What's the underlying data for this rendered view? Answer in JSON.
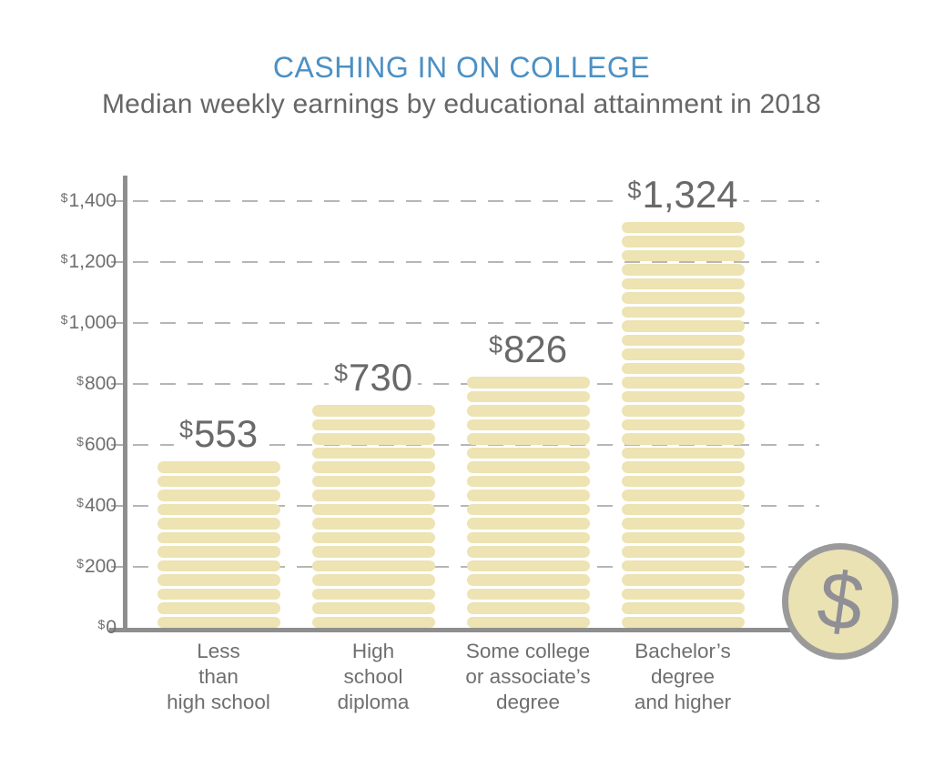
{
  "header": {
    "title": "CASHING IN ON COLLEGE",
    "subtitle": "Median weekly earnings by educational attainment in 2018"
  },
  "chart_data": {
    "type": "bar",
    "title": "CASHING IN ON COLLEGE",
    "subtitle": "Median weekly earnings by educational attainment in 2018",
    "currency_symbol": "$",
    "categories": [
      [
        "Less",
        "than",
        "high school"
      ],
      [
        "High",
        "school",
        "diploma"
      ],
      [
        "Some college",
        "or associate’s",
        "degree"
      ],
      [
        "Bachelor’s",
        "degree",
        "and higher"
      ]
    ],
    "values": [
      553,
      730,
      826,
      1324
    ],
    "value_labels": [
      "553",
      "730",
      "826",
      "1,324"
    ],
    "y_ticks": [
      {
        "value": 0,
        "label": "0"
      },
      {
        "value": 200,
        "label": "200"
      },
      {
        "value": 400,
        "label": "400"
      },
      {
        "value": 600,
        "label": "600"
      },
      {
        "value": 800,
        "label": "800"
      },
      {
        "value": 1000,
        "label": "1,000"
      },
      {
        "value": 1200,
        "label": "1,200"
      },
      {
        "value": 1400,
        "label": "1,400"
      }
    ],
    "ylim": [
      0,
      1480
    ],
    "xlabel": "",
    "ylabel": "",
    "grid": "horizontal dashed",
    "legend_position": "none",
    "bar_style": "stack of rounded bill segments",
    "colors": {
      "bar_fill": "#ede3b3",
      "axis": "#8e8e8e",
      "grid": "#b6b6b6",
      "title": "#4b90c4",
      "subtitle": "#666666",
      "labels": "#6f6f6f",
      "value_text": "#696969"
    }
  },
  "decorations": {
    "coin": {
      "symbol": "$",
      "fill": "#ebe2b4",
      "border": "#9a9a9a",
      "glyph_color": "#8f8f95"
    }
  }
}
